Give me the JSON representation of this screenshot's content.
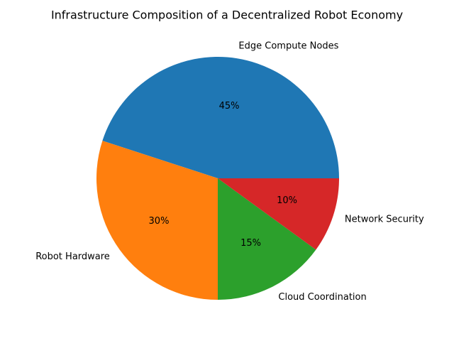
{
  "chart_data": {
    "type": "pie",
    "title": "Infrastructure Composition of a Decentralized Robot Economy",
    "categories": [
      "Edge Compute Nodes",
      "Robot Hardware",
      "Cloud Coordination",
      "Network Security"
    ],
    "values": [
      45,
      30,
      15,
      10
    ],
    "value_labels": [
      "45%",
      "30%",
      "15%",
      "10%"
    ],
    "colors": [
      "#1f77b4",
      "#ff7f0e",
      "#2ca02c",
      "#d62728"
    ]
  }
}
